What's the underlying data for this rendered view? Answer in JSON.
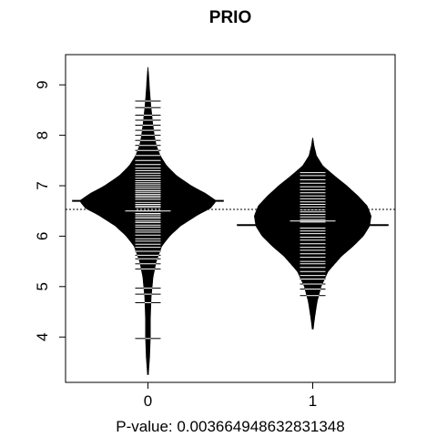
{
  "chart_data": {
    "type": "beanplot",
    "title": "PRIO",
    "xlabel": "P-value: 0.00366494863283134​8",
    "ylabel": "",
    "ylim": [
      3.1,
      9.6
    ],
    "yticks": [
      4,
      5,
      6,
      7,
      8,
      9
    ],
    "categories": [
      "0",
      "1"
    ],
    "overall_mean": 6.53,
    "grid": false,
    "series": [
      {
        "category": "0",
        "mean": 6.7,
        "median": 6.5,
        "density_range": [
          3.25,
          9.35
        ],
        "density": [
          [
            3.25,
            0.01
          ],
          [
            3.6,
            0.025
          ],
          [
            4.0,
            0.035
          ],
          [
            4.4,
            0.035
          ],
          [
            4.8,
            0.045
          ],
          [
            5.2,
            0.07
          ],
          [
            5.5,
            0.11
          ],
          [
            5.8,
            0.18
          ],
          [
            6.0,
            0.28
          ],
          [
            6.2,
            0.42
          ],
          [
            6.4,
            0.62
          ],
          [
            6.55,
            0.8
          ],
          [
            6.7,
            0.88
          ],
          [
            6.85,
            0.74
          ],
          [
            7.0,
            0.56
          ],
          [
            7.2,
            0.37
          ],
          [
            7.4,
            0.24
          ],
          [
            7.6,
            0.16
          ],
          [
            7.8,
            0.11
          ],
          [
            8.0,
            0.085
          ],
          [
            8.3,
            0.06
          ],
          [
            8.6,
            0.04
          ],
          [
            8.9,
            0.025
          ],
          [
            9.15,
            0.015
          ],
          [
            9.35,
            0.005
          ]
        ],
        "observations": [
          3.97,
          4.68,
          4.85,
          4.97,
          5.35,
          5.45,
          5.55,
          5.62,
          5.7,
          5.78,
          5.84,
          5.9,
          5.95,
          6.02,
          6.08,
          6.12,
          6.18,
          6.22,
          6.27,
          6.3,
          6.35,
          6.38,
          6.42,
          6.45,
          6.5,
          6.53,
          6.57,
          6.6,
          6.63,
          6.67,
          6.7,
          6.73,
          6.77,
          6.8,
          6.83,
          6.87,
          6.9,
          6.94,
          6.98,
          7.02,
          7.06,
          7.1,
          7.15,
          7.2,
          7.25,
          7.3,
          7.35,
          7.42,
          7.5,
          7.6,
          7.7,
          7.8,
          7.9,
          8.0,
          8.1,
          8.2,
          8.3,
          8.4,
          8.55,
          8.68
        ]
      },
      {
        "category": "1",
        "mean": 6.22,
        "median": 6.3,
        "density_range": [
          4.15,
          7.95
        ],
        "density": [
          [
            4.15,
            0.01
          ],
          [
            4.4,
            0.03
          ],
          [
            4.7,
            0.06
          ],
          [
            5.0,
            0.11
          ],
          [
            5.3,
            0.2
          ],
          [
            5.6,
            0.37
          ],
          [
            5.8,
            0.52
          ],
          [
            6.0,
            0.65
          ],
          [
            6.2,
            0.73
          ],
          [
            6.4,
            0.75
          ],
          [
            6.6,
            0.7
          ],
          [
            6.8,
            0.58
          ],
          [
            7.0,
            0.44
          ],
          [
            7.2,
            0.28
          ],
          [
            7.4,
            0.13
          ],
          [
            7.6,
            0.05
          ],
          [
            7.8,
            0.02
          ],
          [
            7.95,
            0.005
          ]
        ],
        "observations": [
          4.82,
          4.95,
          5.05,
          5.15,
          5.22,
          5.3,
          5.38,
          5.45,
          5.5,
          5.58,
          5.65,
          5.72,
          5.78,
          5.85,
          5.92,
          5.98,
          6.05,
          6.1,
          6.16,
          6.22,
          6.28,
          6.33,
          6.38,
          6.43,
          6.48,
          6.52,
          6.58,
          6.63,
          6.68,
          6.74,
          6.8,
          6.86,
          6.92,
          6.98,
          7.05,
          7.12,
          7.2,
          7.26
        ]
      }
    ]
  }
}
